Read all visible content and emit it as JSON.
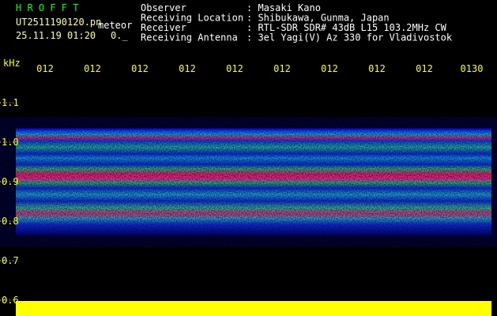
{
  "header": {
    "app_title": "H R O F F T",
    "file": "UT2511190120.pn",
    "file_suffix": "meteor",
    "datetime": "25.11.19 01:20",
    "counter": "0._",
    "rows": [
      {
        "label": "Observer",
        "value": ": Masaki Kano"
      },
      {
        "label": "Receiving Location",
        "value": ": Shibukawa, Gunma, Japan"
      },
      {
        "label": "Receiver",
        "value": ": RTL-SDR SDR# 43dB L15 103.2MHz CW"
      },
      {
        "label": "Receiving Antenna",
        "value": ": 3el Yagi(V) Az 330 for Vladivostok"
      }
    ]
  },
  "axes": {
    "y_unit": "kHz",
    "y_labels": [
      "1.1",
      "1.0",
      "0.9",
      "0.8",
      "0.7",
      "0.6"
    ],
    "time_labels": [
      "012",
      "012",
      "012",
      "012",
      "012",
      "012",
      "012",
      "012",
      "012",
      "0130"
    ]
  }
}
